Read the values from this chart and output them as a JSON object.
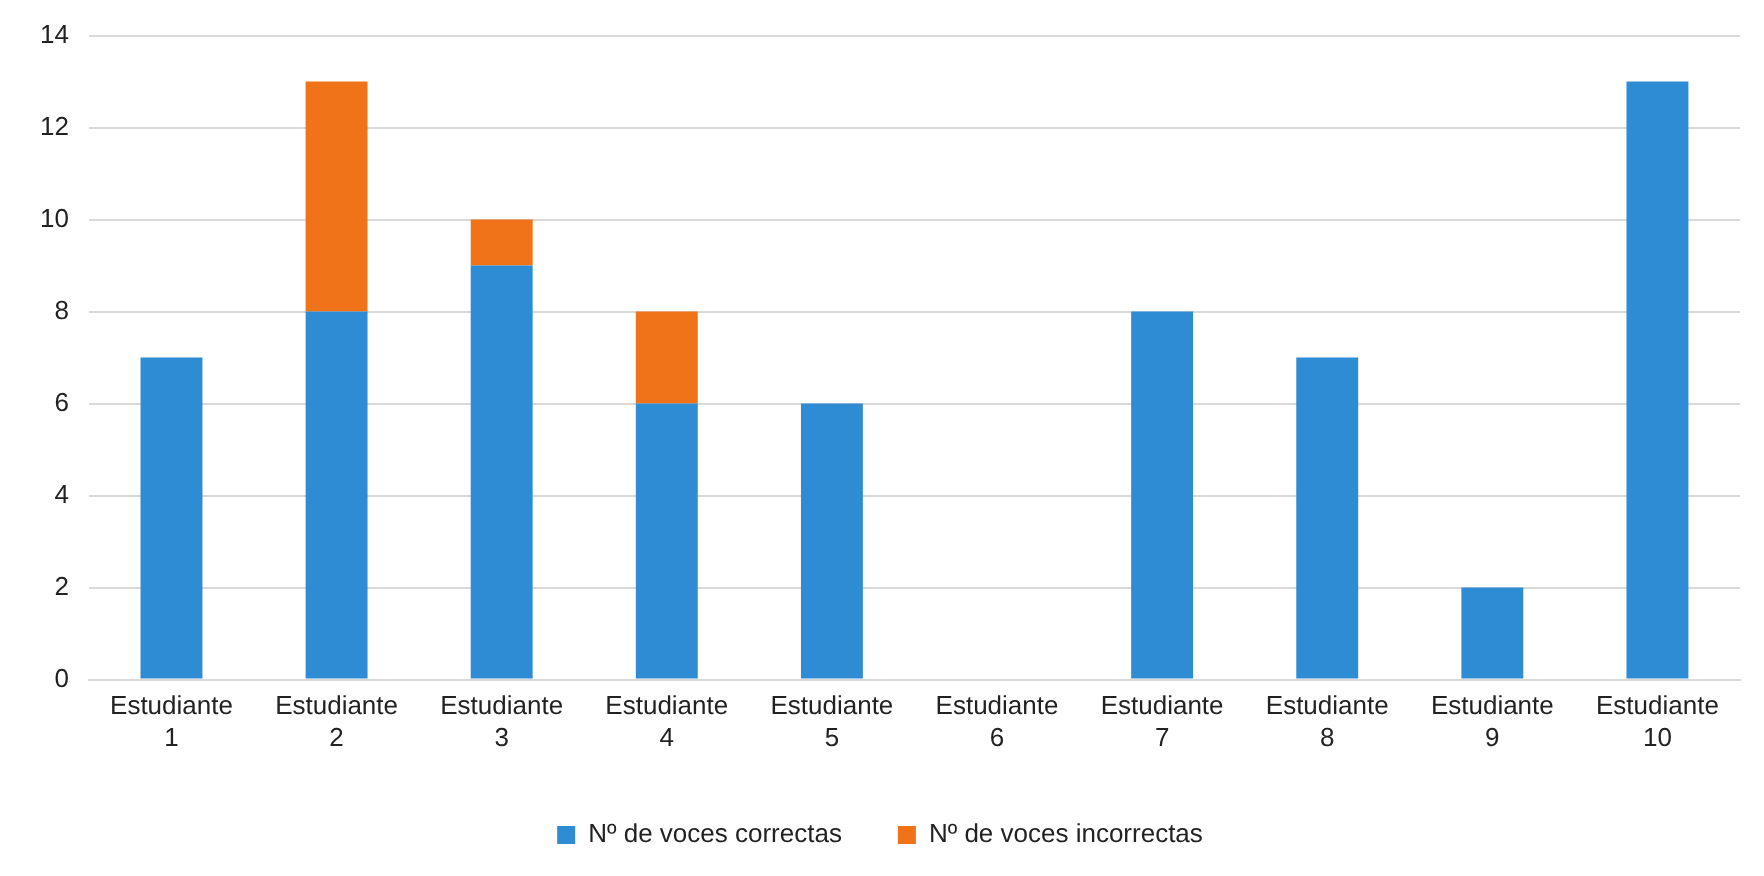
{
  "chart_data": {
    "type": "bar",
    "stacked": true,
    "categories": [
      "Estudiante 1",
      "Estudiante 2",
      "Estudiante 3",
      "Estudiante 4",
      "Estudiante 5",
      "Estudiante 6",
      "Estudiante 7",
      "Estudiante 8",
      "Estudiante 9",
      "Estudiante 10"
    ],
    "series": [
      {
        "name": "Nº de voces correctas",
        "color": "#2e8cd4",
        "values": [
          7,
          8,
          9,
          6,
          6,
          0,
          8,
          7,
          2,
          13
        ]
      },
      {
        "name": "Nº de voces incorrectas",
        "color": "#f07219",
        "values": [
          0,
          5,
          1,
          2,
          0,
          0,
          0,
          0,
          0,
          0
        ]
      }
    ],
    "ylim": [
      0,
      14
    ],
    "yticks": [
      0,
      2,
      4,
      6,
      8,
      10,
      12,
      14
    ],
    "grid": "y",
    "legend": "bottom"
  }
}
